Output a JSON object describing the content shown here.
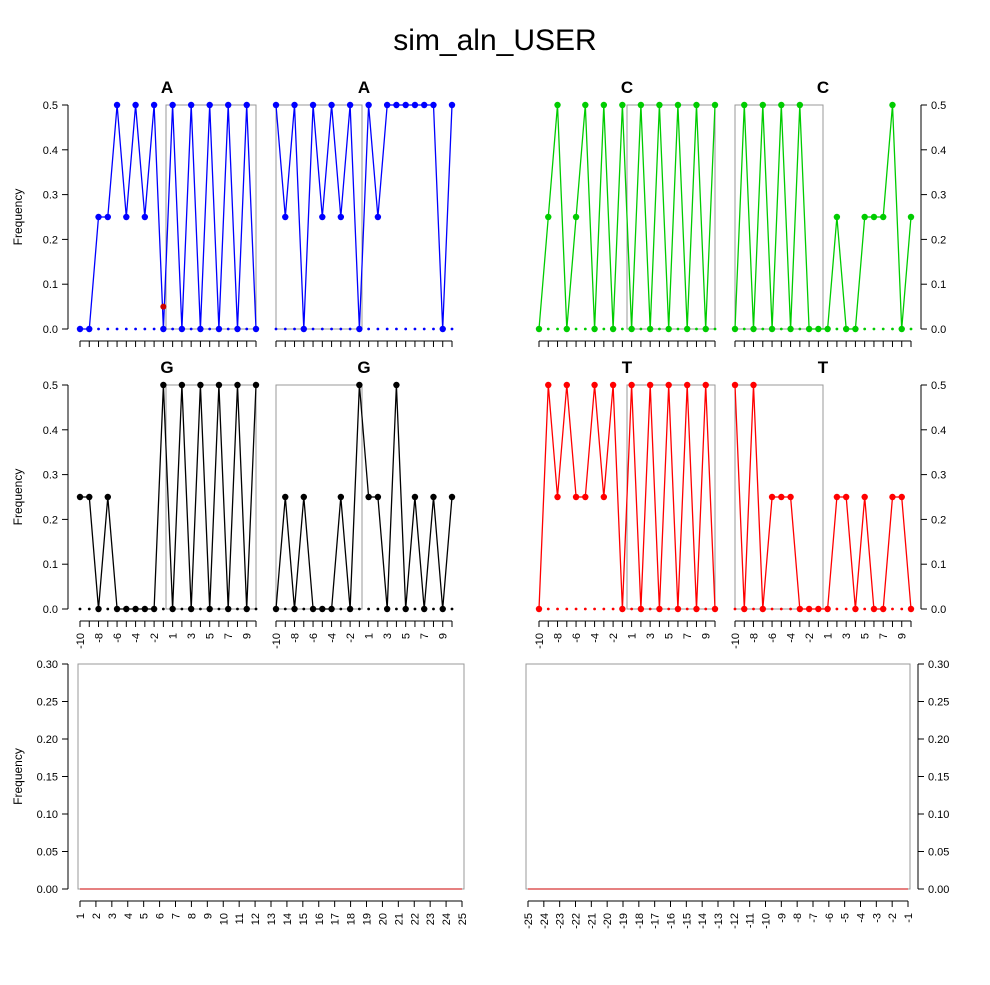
{
  "figure": {
    "title": "sim_aln_USER",
    "ylabel": "Frequency"
  },
  "chart_data": [
    {
      "type": "line",
      "panel": "top-left",
      "label": "A",
      "color": "#0000ff",
      "x": [
        -10,
        -9,
        -8,
        -7,
        -6,
        -5,
        -4,
        -3,
        -2,
        -1,
        1,
        2,
        3,
        4,
        5,
        6,
        7,
        8,
        9,
        10
      ],
      "series": [
        {
          "values": [
            0,
            0,
            0.25,
            0.25,
            0.5,
            0.25,
            0.5,
            0.25,
            0.5,
            0.0,
            0.5,
            0,
            0.5,
            0,
            0.5,
            0,
            0.5,
            0,
            0.5,
            0
          ]
        }
      ],
      "extra_points": [
        {
          "x": -1,
          "y": 0.05,
          "color": "#cc0000"
        }
      ],
      "ylim": [
        0,
        0.5
      ],
      "yticks": [
        "0.0",
        "0.1",
        "0.2",
        "0.3",
        "0.4",
        "0.5"
      ]
    },
    {
      "type": "line",
      "panel": "top-right",
      "label": "A",
      "color": "#0000ff",
      "x": [
        -10,
        -9,
        -8,
        -7,
        -6,
        -5,
        -4,
        -3,
        -2,
        -1,
        1,
        2,
        3,
        4,
        5,
        6,
        7,
        8,
        9,
        10
      ],
      "series": [
        {
          "values": [
            0.5,
            0.25,
            0.5,
            0,
            0.5,
            0.25,
            0.5,
            0.25,
            0.5,
            0,
            0.5,
            0.25,
            0.5,
            0.5,
            0.5,
            0.5,
            0.5,
            0.5,
            0,
            0.5
          ]
        }
      ],
      "ylim": [
        0,
        0.5
      ]
    },
    {
      "type": "line",
      "panel": "top-left",
      "label": "C",
      "color": "#00cc00",
      "x": [
        -10,
        -9,
        -8,
        -7,
        -6,
        -5,
        -4,
        -3,
        -2,
        -1,
        1,
        2,
        3,
        4,
        5,
        6,
        7,
        8,
        9,
        10
      ],
      "series": [
        {
          "values": [
            0,
            0.25,
            0.5,
            0,
            0.25,
            0.5,
            0,
            0.5,
            0,
            0.5,
            0,
            0.5,
            0,
            0.5,
            0,
            0.5,
            0,
            0.5,
            0,
            0.5
          ]
        }
      ],
      "ylim": [
        0,
        0.5
      ]
    },
    {
      "type": "line",
      "panel": "top-right",
      "label": "C",
      "color": "#00cc00",
      "x": [
        -10,
        -9,
        -8,
        -7,
        -6,
        -5,
        -4,
        -3,
        -2,
        -1,
        1,
        2,
        3,
        4,
        5,
        6,
        7,
        8,
        9,
        10
      ],
      "series": [
        {
          "values": [
            0,
            0.5,
            0,
            0.5,
            0,
            0.5,
            0,
            0.5,
            0,
            0,
            0,
            0.25,
            0,
            0,
            0.25,
            0.25,
            0.25,
            0.5,
            0,
            0.25
          ]
        }
      ],
      "ylim": [
        0,
        0.5
      ],
      "yticks": [
        "0.0",
        "0.1",
        "0.2",
        "0.3",
        "0.4",
        "0.5"
      ]
    },
    {
      "type": "line",
      "panel": "mid-left",
      "label": "G",
      "color": "#000000",
      "x": [
        -10,
        -9,
        -8,
        -7,
        -6,
        -5,
        -4,
        -3,
        -2,
        -1,
        1,
        2,
        3,
        4,
        5,
        6,
        7,
        8,
        9,
        10
      ],
      "series": [
        {
          "values": [
            0.25,
            0.25,
            0,
            0.25,
            0,
            0,
            0,
            0,
            0,
            0.5,
            0,
            0.5,
            0,
            0.5,
            0,
            0.5,
            0,
            0.5,
            0,
            0.5
          ]
        }
      ],
      "ylim": [
        0,
        0.5
      ],
      "yticks": [
        "0.0",
        "0.1",
        "0.2",
        "0.3",
        "0.4",
        "0.5"
      ],
      "xticks": [
        "-10",
        "-8",
        "-6",
        "-4",
        "-2",
        "1",
        "3",
        "5",
        "7",
        "9"
      ]
    },
    {
      "type": "line",
      "panel": "mid-left",
      "label": "G",
      "color": "#000000",
      "x": [
        -10,
        -9,
        -8,
        -7,
        -6,
        -5,
        -4,
        -3,
        -2,
        -1,
        1,
        2,
        3,
        4,
        5,
        6,
        7,
        8,
        9,
        10
      ],
      "series": [
        {
          "values": [
            0,
            0.25,
            0,
            0.25,
            0,
            0,
            0,
            0.25,
            0,
            0.5,
            0.25,
            0.25,
            0,
            0.5,
            0,
            0.25,
            0,
            0.25,
            0,
            0.25
          ]
        }
      ],
      "ylim": [
        0,
        0.5
      ],
      "xticks": [
        "-10",
        "-8",
        "-6",
        "-4",
        "-2",
        "1",
        "3",
        "5",
        "7",
        "9"
      ]
    },
    {
      "type": "line",
      "panel": "mid-right",
      "label": "T",
      "color": "#ff0000",
      "x": [
        -10,
        -9,
        -8,
        -7,
        -6,
        -5,
        -4,
        -3,
        -2,
        -1,
        1,
        2,
        3,
        4,
        5,
        6,
        7,
        8,
        9,
        10
      ],
      "series": [
        {
          "values": [
            0,
            0.5,
            0.25,
            0.5,
            0.25,
            0.25,
            0.5,
            0.25,
            0.5,
            0,
            0.5,
            0,
            0.5,
            0,
            0.5,
            0,
            0.5,
            0,
            0.5,
            0
          ]
        }
      ],
      "ylim": [
        0,
        0.5
      ],
      "xticks": [
        "-10",
        "-8",
        "-6",
        "-4",
        "-2",
        "1",
        "3",
        "5",
        "7",
        "9"
      ]
    },
    {
      "type": "line",
      "panel": "mid-right",
      "label": "T",
      "color": "#ff0000",
      "x": [
        -10,
        -9,
        -8,
        -7,
        -6,
        -5,
        -4,
        -3,
        -2,
        -1,
        1,
        2,
        3,
        4,
        5,
        6,
        7,
        8,
        9,
        10
      ],
      "series": [
        {
          "values": [
            0.5,
            0,
            0.5,
            0,
            0.25,
            0.25,
            0.25,
            0,
            0,
            0,
            0,
            0.25,
            0.25,
            0,
            0.25,
            0,
            0,
            0.25,
            0.25,
            0
          ]
        }
      ],
      "ylim": [
        0,
        0.5
      ],
      "yticks": [
        "0.0",
        "0.1",
        "0.2",
        "0.3",
        "0.4",
        "0.5"
      ],
      "xticks": [
        "-10",
        "-8",
        "-6",
        "-4",
        "-2",
        "1",
        "3",
        "5",
        "7",
        "9"
      ]
    },
    {
      "type": "line",
      "panel": "bottom-left",
      "color": "#cc0000",
      "x": [
        1,
        2,
        3,
        4,
        5,
        6,
        7,
        8,
        9,
        10,
        11,
        12,
        13,
        14,
        15,
        16,
        17,
        18,
        19,
        20,
        21,
        22,
        23,
        24,
        25
      ],
      "series": [
        {
          "values": [
            0,
            0,
            0,
            0,
            0,
            0,
            0,
            0,
            0,
            0,
            0,
            0,
            0,
            0,
            0,
            0,
            0,
            0,
            0,
            0,
            0,
            0,
            0,
            0,
            0
          ]
        }
      ],
      "ylim": [
        0,
        0.3
      ],
      "yticks": [
        "0.00",
        "0.05",
        "0.10",
        "0.15",
        "0.20",
        "0.25",
        "0.30"
      ],
      "xticks": [
        "1",
        "2",
        "3",
        "4",
        "5",
        "6",
        "7",
        "8",
        "9",
        "10",
        "11",
        "12",
        "13",
        "14",
        "15",
        "16",
        "17",
        "18",
        "19",
        "20",
        "21",
        "22",
        "23",
        "24",
        "25"
      ]
    },
    {
      "type": "line",
      "panel": "bottom-right",
      "color": "#cc0000",
      "x": [
        -25,
        -24,
        -23,
        -22,
        -21,
        -20,
        -19,
        -18,
        -17,
        -16,
        -15,
        -14,
        -13,
        -12,
        -11,
        -10,
        -9,
        -8,
        -7,
        -6,
        -5,
        -4,
        -3,
        -2,
        -1
      ],
      "series": [
        {
          "values": [
            0,
            0,
            0,
            0,
            0,
            0,
            0,
            0,
            0,
            0,
            0,
            0,
            0,
            0,
            0,
            0,
            0,
            0,
            0,
            0,
            0,
            0,
            0,
            0,
            0
          ]
        }
      ],
      "ylim": [
        0,
        0.3
      ],
      "yticks": [
        "0.00",
        "0.05",
        "0.10",
        "0.15",
        "0.20",
        "0.25",
        "0.30"
      ],
      "xticks": [
        "-25",
        "-24",
        "-23",
        "-22",
        "-21",
        "-20",
        "-19",
        "-18",
        "-17",
        "-16",
        "-15",
        "-14",
        "-13",
        "-12",
        "-11",
        "-10",
        "-9",
        "-8",
        "-7",
        "-6",
        "-5",
        "-4",
        "-3",
        "-2",
        "-1"
      ]
    }
  ]
}
